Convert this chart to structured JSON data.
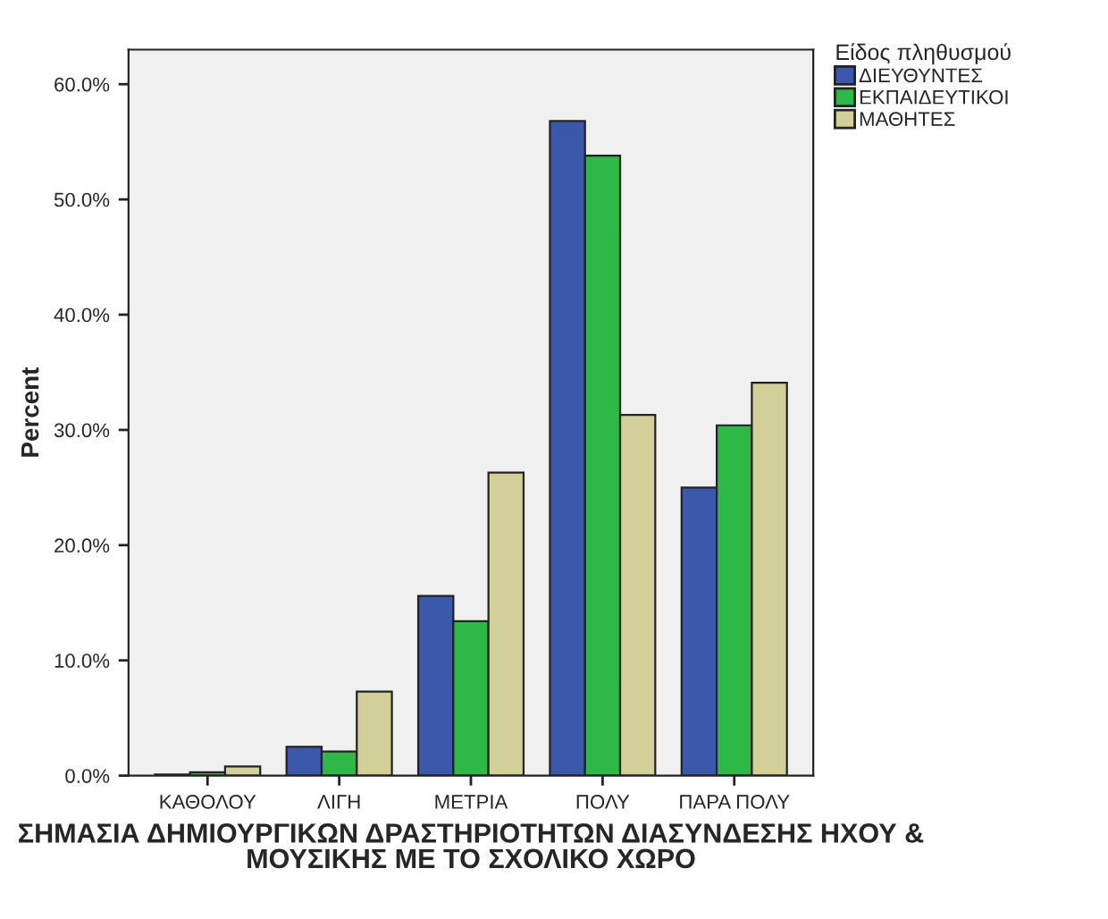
{
  "chart_data": {
    "type": "bar",
    "xlabel": "ΣΗΜΑΣΙΑ ΔΗΜΙΟΥΡΓΙΚΩΝ ΔΡΑΣΤΗΡΙΟΤΗΤΩΝ ΔΙΑΣΥΝΔΕΣΗΣ ΗΧΟΥ & ΜΟΥΣΙΚΗΣ ΜΕ ΤΟ ΣΧΟΛΙΚΟ ΧΩΡΟ",
    "ylabel": "Percent",
    "legend_title": "Είδος πληθυσμού",
    "categories": [
      "ΚΑΘΟΛΟΥ",
      "ΛΙΓΗ",
      "ΜΕΤΡΙΑ",
      "ΠΟΛΥ",
      "ΠΑΡΑ ΠΟΛΥ"
    ],
    "series": [
      {
        "name": "ΔΙΕΥΘΥΝΤΕΣ",
        "color": "#3c58aa",
        "values": [
          0.1,
          2.5,
          15.6,
          56.8,
          25.0
        ]
      },
      {
        "name": "ΕΚΠΑΙΔΕΥΤΙΚΟΙ",
        "color": "#2eb848",
        "values": [
          0.3,
          2.1,
          13.4,
          53.8,
          30.4
        ]
      },
      {
        "name": "ΜΑΘΗΤΕΣ",
        "color": "#d3cf98",
        "values": [
          0.8,
          7.3,
          26.3,
          31.3,
          34.1
        ]
      }
    ],
    "ylim": [
      0,
      63
    ],
    "yticks": [
      {
        "value": 0,
        "label": "0.0%"
      },
      {
        "value": 10,
        "label": "10.0%"
      },
      {
        "value": 20,
        "label": "20.0%"
      },
      {
        "value": 30,
        "label": "30.0%"
      },
      {
        "value": 40,
        "label": "40.0%"
      },
      {
        "value": 50,
        "label": "50.0%"
      },
      {
        "value": 60,
        "label": "60.0%"
      }
    ],
    "grid": false,
    "legend": "top right"
  }
}
